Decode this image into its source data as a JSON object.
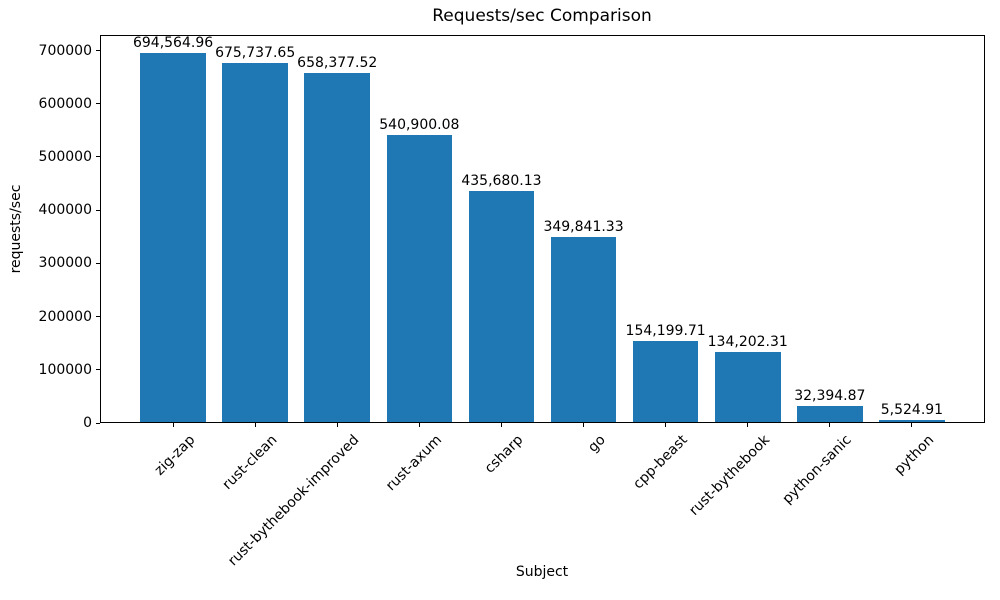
{
  "chart_data": {
    "type": "bar",
    "title": "Requests/sec Comparison",
    "xlabel": "Subject",
    "ylabel": "requests/sec",
    "categories": [
      "zig-zap",
      "rust-clean",
      "rust-bythebook-improved",
      "rust-axum",
      "csharp",
      "go",
      "cpp-beast",
      "rust-bythebook",
      "python-sanic",
      "python"
    ],
    "values": [
      694564.96,
      675737.65,
      658377.52,
      540900.08,
      435680.13,
      349841.33,
      154199.71,
      134202.31,
      32394.87,
      5524.91
    ],
    "value_labels": [
      "694,564.96",
      "675,737.65",
      "658,377.52",
      "540,900.08",
      "435,680.13",
      "349,841.33",
      "154,199.71",
      "134,202.31",
      "32,394.87",
      "5,524.91"
    ],
    "yticks": [
      0,
      100000,
      200000,
      300000,
      400000,
      500000,
      600000,
      700000
    ],
    "ytick_labels": [
      "0",
      "100000",
      "200000",
      "300000",
      "400000",
      "500000",
      "600000",
      "700000"
    ],
    "ylim": [
      0,
      729293
    ],
    "bar_color": "#1f77b4",
    "text_color": "#000000",
    "grid": false,
    "legend": null
  }
}
